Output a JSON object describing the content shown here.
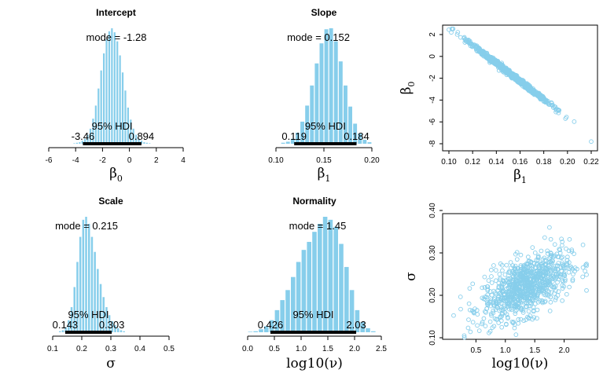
{
  "chart_data": [
    {
      "type": "bar",
      "title": "Intercept",
      "xlabel": "β",
      "xlabel_sub": "0",
      "xlim": [
        -6,
        4
      ],
      "ticks": [
        "-6",
        "-4",
        "-2",
        "0",
        "2",
        "4"
      ],
      "bin_width": 0.2,
      "x": [
        -4.1,
        -3.9,
        -3.7,
        -3.5,
        -3.3,
        -3.1,
        -2.9,
        -2.7,
        -2.5,
        -2.3,
        -2.1,
        -1.9,
        -1.7,
        -1.5,
        -1.3,
        -1.1,
        -0.9,
        -0.7,
        -0.5,
        -0.3,
        -0.1,
        0.1,
        0.3,
        0.5,
        0.7,
        0.9,
        1.1,
        1.3,
        1.5
      ],
      "values": [
        0.5,
        1,
        1.5,
        3,
        5,
        9,
        15,
        25,
        38,
        55,
        73,
        90,
        104,
        112,
        115,
        111,
        102,
        88,
        71,
        53,
        36,
        24,
        15,
        9,
        5,
        3,
        1.5,
        1,
        0.5
      ],
      "mode_label": "mode = -1.28",
      "hdi_label": "95% HDI",
      "hdi": [
        -3.46,
        0.894
      ],
      "hdi_low_label": "-3.46",
      "hdi_high_label": "0.894"
    },
    {
      "type": "bar",
      "title": "Slope",
      "xlabel": "β",
      "xlabel_sub": "1",
      "xlim": [
        0.1,
        0.2
      ],
      "ticks": [
        "0.10",
        "0.15",
        "0.20"
      ],
      "bin_width": 0.005,
      "x": [
        0.1075,
        0.1125,
        0.1175,
        0.1225,
        0.1275,
        0.1325,
        0.1375,
        0.1425,
        0.1475,
        0.1525,
        0.1575,
        0.1625,
        0.1675,
        0.1725,
        0.1775,
        0.1825,
        0.1875,
        0.1925,
        0.1975
      ],
      "values": [
        1,
        2,
        5,
        11,
        22,
        38,
        58,
        80,
        100,
        114,
        115,
        102,
        82,
        58,
        37,
        20,
        10,
        4,
        1.5
      ],
      "mode_label": "mode = 0.152",
      "hdi_label": "95% HDI",
      "hdi": [
        0.119,
        0.184
      ],
      "hdi_low_label": "0.119",
      "hdi_high_label": "0.184"
    },
    {
      "type": "scatter",
      "xlabel": "β",
      "xlabel_sub": "1",
      "ylabel": "β",
      "ylabel_sub": "0",
      "xlim": [
        0.1,
        0.22
      ],
      "ylim": [
        -8,
        2
      ],
      "xticks": [
        "0.10",
        "0.12",
        "0.14",
        "0.16",
        "0.18",
        "0.20",
        "0.22"
      ],
      "yticks": [
        "-8",
        "-6",
        "-4",
        "-2",
        "0",
        "2"
      ],
      "color": "#87ceeb",
      "points": [
        [
          0.1,
          2.45
        ],
        [
          0.102,
          2.2
        ],
        [
          0.22,
          -7.8
        ]
      ],
      "trend": {
        "intercept": 11.0,
        "slope": -83.0
      },
      "n_points": 900
    },
    {
      "type": "bar",
      "title": "Scale",
      "xlabel": "σ",
      "xlim": [
        0.1,
        0.5
      ],
      "ticks": [
        "0.1",
        "0.2",
        "0.3",
        "0.4",
        "0.5"
      ],
      "bin_width": 0.01,
      "x": [
        0.125,
        0.135,
        0.145,
        0.155,
        0.165,
        0.175,
        0.185,
        0.195,
        0.205,
        0.215,
        0.225,
        0.235,
        0.245,
        0.255,
        0.265,
        0.275,
        0.285,
        0.295,
        0.305,
        0.315,
        0.325,
        0.335,
        0.345
      ],
      "values": [
        1,
        2,
        5,
        12,
        25,
        45,
        70,
        95,
        112,
        115,
        108,
        95,
        80,
        63,
        48,
        35,
        25,
        17,
        11,
        7,
        4,
        2,
        1
      ],
      "mode_label": "mode = 0.215",
      "hdi_label": "95% HDI",
      "hdi": [
        0.143,
        0.303
      ],
      "hdi_low_label": "0.143",
      "hdi_high_label": "0.303"
    },
    {
      "type": "bar",
      "title": "Normality",
      "xlabel": "log10(ν)",
      "xlim": [
        0.0,
        2.5
      ],
      "ticks": [
        "0.0",
        "0.5",
        "1.0",
        "1.5",
        "2.0",
        "2.5"
      ],
      "bin_width": 0.1,
      "x": [
        0.05,
        0.15,
        0.25,
        0.35,
        0.45,
        0.55,
        0.65,
        0.75,
        0.85,
        0.95,
        1.05,
        1.15,
        1.25,
        1.35,
        1.45,
        1.55,
        1.65,
        1.75,
        1.85,
        1.95,
        2.05,
        2.15,
        2.25,
        2.35
      ],
      "values": [
        0.5,
        1,
        3,
        6,
        12,
        22,
        32,
        42,
        55,
        70,
        82,
        90,
        100,
        108,
        115,
        112,
        105,
        88,
        65,
        42,
        22,
        10,
        4,
        1
      ],
      "mode_label": "mode = 1.45",
      "hdi_label": "95% HDI",
      "hdi": [
        0.426,
        2.03
      ],
      "hdi_low_label": "0.426",
      "hdi_high_label": "2.03"
    },
    {
      "type": "scatter",
      "xlabel": "log10(ν)",
      "ylabel": "σ",
      "xlim": [
        0.0,
        2.5
      ],
      "ylim": [
        0.1,
        0.4
      ],
      "xticks": [
        "0.5",
        "1.0",
        "1.5",
        "2.0"
      ],
      "yticks": [
        "0.10",
        "0.20",
        "0.30",
        "0.40"
      ],
      "color": "#87ceeb",
      "points": [
        [
          1.5,
          0.39
        ],
        [
          1.75,
          0.36
        ],
        [
          0.3,
          0.105
        ]
      ],
      "n_points": 900
    }
  ]
}
